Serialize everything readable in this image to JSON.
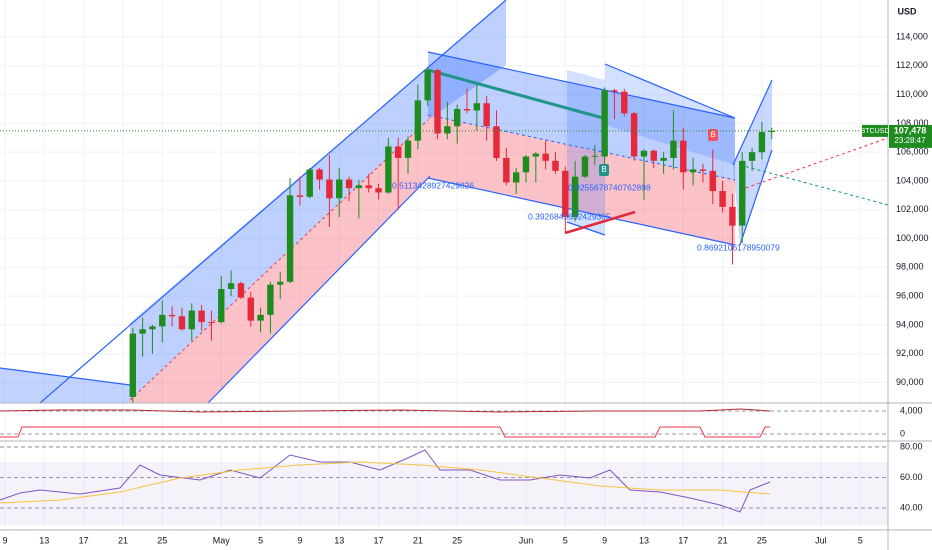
{
  "chart_data": {
    "type": "candlestick",
    "currency": "USD",
    "symbol": "BTCUSD",
    "last_price_label": "107,478",
    "countdown": "23:28:47",
    "up_color": "#1f8c1f",
    "down_color": "#e5283a",
    "x": [
      "04-22",
      "04-23",
      "04-24",
      "04-25",
      "04-26",
      "04-27",
      "04-28",
      "04-29",
      "04-30",
      "05-01",
      "05-02",
      "05-03",
      "05-04",
      "05-05",
      "05-06",
      "05-07",
      "05-08",
      "05-09",
      "05-10",
      "05-11",
      "05-12",
      "05-13",
      "05-14",
      "05-15",
      "05-16",
      "05-17",
      "05-18",
      "05-19",
      "05-20",
      "05-21",
      "05-22",
      "05-23",
      "05-24",
      "05-25",
      "05-26",
      "05-27",
      "05-28",
      "05-29",
      "05-30",
      "05-31",
      "06-01",
      "06-02",
      "06-03",
      "06-04",
      "06-05",
      "06-06",
      "06-07",
      "06-08",
      "06-09",
      "06-10",
      "06-11",
      "06-12",
      "06-13",
      "06-14",
      "06-15",
      "06-16",
      "06-17",
      "06-18",
      "06-19",
      "06-20",
      "06-21",
      "06-22",
      "06-23",
      "06-24",
      "06-25",
      "06-26"
    ],
    "open": [
      89000,
      93400,
      93700,
      93900,
      94700,
      94600,
      93700,
      95000,
      94200,
      94200,
      96500,
      96900,
      95900,
      94300,
      94700,
      96800,
      97000,
      103000,
      102900,
      104800,
      104100,
      102800,
      104100,
      103500,
      103700,
      103500,
      103200,
      106400,
      105600,
      106800,
      109600,
      111700,
      107300,
      107800,
      109000,
      108900,
      109400,
      107800,
      105600,
      103900,
      104600,
      105700,
      105900,
      105400,
      104700,
      101500,
      104300,
      105700,
      105700,
      110300,
      110200,
      108700,
      105700,
      106100,
      105400,
      105600,
      106800,
      104600,
      104800,
      104700,
      103300,
      102200,
      100900,
      105400,
      106000,
      107400
    ],
    "high": [
      93800,
      94500,
      94000,
      95700,
      95300,
      95200,
      95500,
      95400,
      95000,
      97400,
      97800,
      97000,
      96300,
      95200,
      97000,
      97700,
      104200,
      104300,
      104900,
      104900,
      105800,
      104900,
      104300,
      104100,
      104500,
      103800,
      107000,
      107000,
      107100,
      110700,
      111900,
      111800,
      109500,
      109300,
      110400,
      110700,
      109900,
      108900,
      106300,
      104900,
      105800,
      106000,
      106800,
      106000,
      105000,
      105400,
      105800,
      106500,
      110500,
      110400,
      110400,
      108800,
      106200,
      106200,
      106000,
      108900,
      107700,
      105600,
      105200,
      106200,
      104000,
      103100,
      106000,
      106300,
      108100,
      107700
    ],
    "low": [
      88600,
      91800,
      92000,
      92800,
      93900,
      93600,
      92900,
      93600,
      92900,
      94100,
      96000,
      95800,
      93900,
      93500,
      93400,
      95800,
      96900,
      102300,
      102800,
      103400,
      100800,
      101500,
      102600,
      101400,
      103200,
      102700,
      103100,
      102000,
      104500,
      106200,
      109200,
      106900,
      106900,
      106600,
      108700,
      107500,
      106800,
      105400,
      103700,
      103100,
      103900,
      103900,
      104800,
      104500,
      100400,
      101200,
      104200,
      105100,
      105100,
      108300,
      108500,
      105400,
      102700,
      104900,
      104500,
      104800,
      103400,
      103700,
      103900,
      102400,
      101800,
      98200,
      99700,
      104700,
      105500,
      106900
    ],
    "close": [
      93400,
      93700,
      93900,
      94700,
      94600,
      93700,
      95000,
      94200,
      94150,
      96500,
      96900,
      95900,
      94300,
      94700,
      96800,
      97000,
      103000,
      102900,
      104800,
      104100,
      102800,
      104100,
      103500,
      103700,
      103500,
      103200,
      106400,
      105600,
      106800,
      109600,
      111700,
      107300,
      107800,
      109000,
      108900,
      109400,
      107800,
      105600,
      103900,
      104600,
      105700,
      105900,
      105400,
      104700,
      101500,
      104300,
      105700,
      105750,
      110300,
      110200,
      108700,
      105700,
      106100,
      105400,
      105600,
      106800,
      104600,
      104800,
      104700,
      103300,
      102200,
      100900,
      105400,
      106000,
      107400,
      107478
    ],
    "ylim": [
      88580,
      116570
    ],
    "yticks": [
      {
        "value": 114000,
        "label": "114,000"
      },
      {
        "value": 112000,
        "label": "112,000"
      },
      {
        "value": 110000,
        "label": "110,000"
      },
      {
        "value": 108000,
        "label": "108,000"
      },
      {
        "value": 106000,
        "label": "106,000"
      },
      {
        "value": 104000,
        "label": "104,000"
      },
      {
        "value": 102000,
        "label": "102,000"
      },
      {
        "value": 100000,
        "label": "100,000"
      },
      {
        "value": 98000,
        "label": "98,000"
      },
      {
        "value": 96000,
        "label": "96,000"
      },
      {
        "value": 94000,
        "label": "94,000"
      },
      {
        "value": 92000,
        "label": "92,000"
      },
      {
        "value": 90000,
        "label": "90,000"
      }
    ],
    "xticks": [
      {
        "value": "04-09",
        "label": "9"
      },
      {
        "value": "04-13",
        "label": "13"
      },
      {
        "value": "04-17",
        "label": "17"
      },
      {
        "value": "04-21",
        "label": "21"
      },
      {
        "value": "04-25",
        "label": "25"
      },
      {
        "value": "05-01",
        "label": "May"
      },
      {
        "value": "05-05",
        "label": "5"
      },
      {
        "value": "05-09",
        "label": "9"
      },
      {
        "value": "05-13",
        "label": "13"
      },
      {
        "value": "05-17",
        "label": "17"
      },
      {
        "value": "05-21",
        "label": "21"
      },
      {
        "value": "05-25",
        "label": "25"
      },
      {
        "value": "06-01",
        "label": "Jun"
      },
      {
        "value": "06-05",
        "label": "5"
      },
      {
        "value": "06-09",
        "label": "9"
      },
      {
        "value": "06-13",
        "label": "13"
      },
      {
        "value": "06-17",
        "label": "17"
      },
      {
        "value": "06-21",
        "label": "21"
      },
      {
        "value": "06-25",
        "label": "25"
      },
      {
        "value": "07-01",
        "label": "Jul"
      },
      {
        "value": "07-05",
        "label": "5"
      }
    ],
    "annotations": [
      "0.5113428927429826",
      "0.3926845632429305",
      "0.0255678740762898",
      "0.8692106178950079"
    ],
    "markers": [
      "B",
      "B"
    ],
    "pane2_ylim": [
      -1217,
      5391
    ],
    "pane2_ticks": [
      {
        "value": 4000,
        "label": "4,000"
      },
      0
    ],
    "pane3_ylim": [
      25.6,
      83.9
    ],
    "pane3_ticks": [
      {
        "value": 80,
        "label": "80.00"
      },
      {
        "value": 60,
        "label": "60.00"
      },
      {
        "value": 40,
        "label": "40.00"
      }
    ]
  }
}
